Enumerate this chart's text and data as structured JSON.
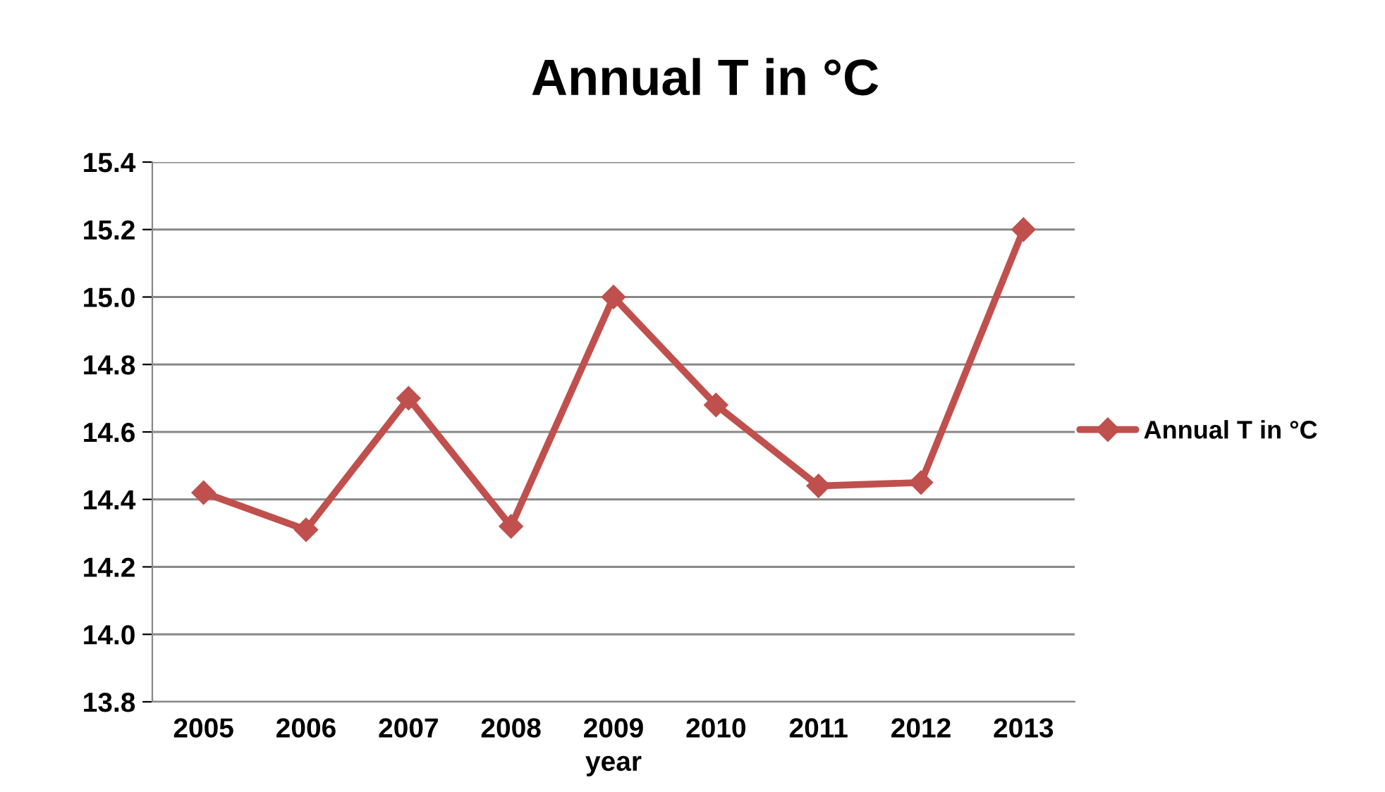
{
  "chart_data": {
    "type": "line",
    "title": "Annual T in °C",
    "xlabel": "year",
    "categories": [
      "2005",
      "2006",
      "2007",
      "2008",
      "2009",
      "2010",
      "2011",
      "2012",
      "2013"
    ],
    "series": [
      {
        "name": "Annual T in °C",
        "color": "#c0504d",
        "values": [
          14.42,
          14.31,
          14.7,
          14.32,
          15.0,
          14.68,
          14.44,
          14.45,
          15.2
        ]
      }
    ],
    "ylim": [
      13.8,
      15.4
    ],
    "yticks": [
      {
        "value": 13.8,
        "label": "13.8"
      },
      {
        "value": 14.0,
        "label": "14.0"
      },
      {
        "value": 14.2,
        "label": "14.2"
      },
      {
        "value": 14.4,
        "label": "14.4"
      },
      {
        "value": 14.6,
        "label": "14.6"
      },
      {
        "value": 14.8,
        "label": "14.8"
      },
      {
        "value": 15.0,
        "label": "15.0"
      },
      {
        "value": 15.2,
        "label": "15.2"
      },
      {
        "value": 15.4,
        "label": "15.4"
      }
    ],
    "grid": "y",
    "legend": "right",
    "marker": "diamond",
    "line_style": "solid"
  }
}
